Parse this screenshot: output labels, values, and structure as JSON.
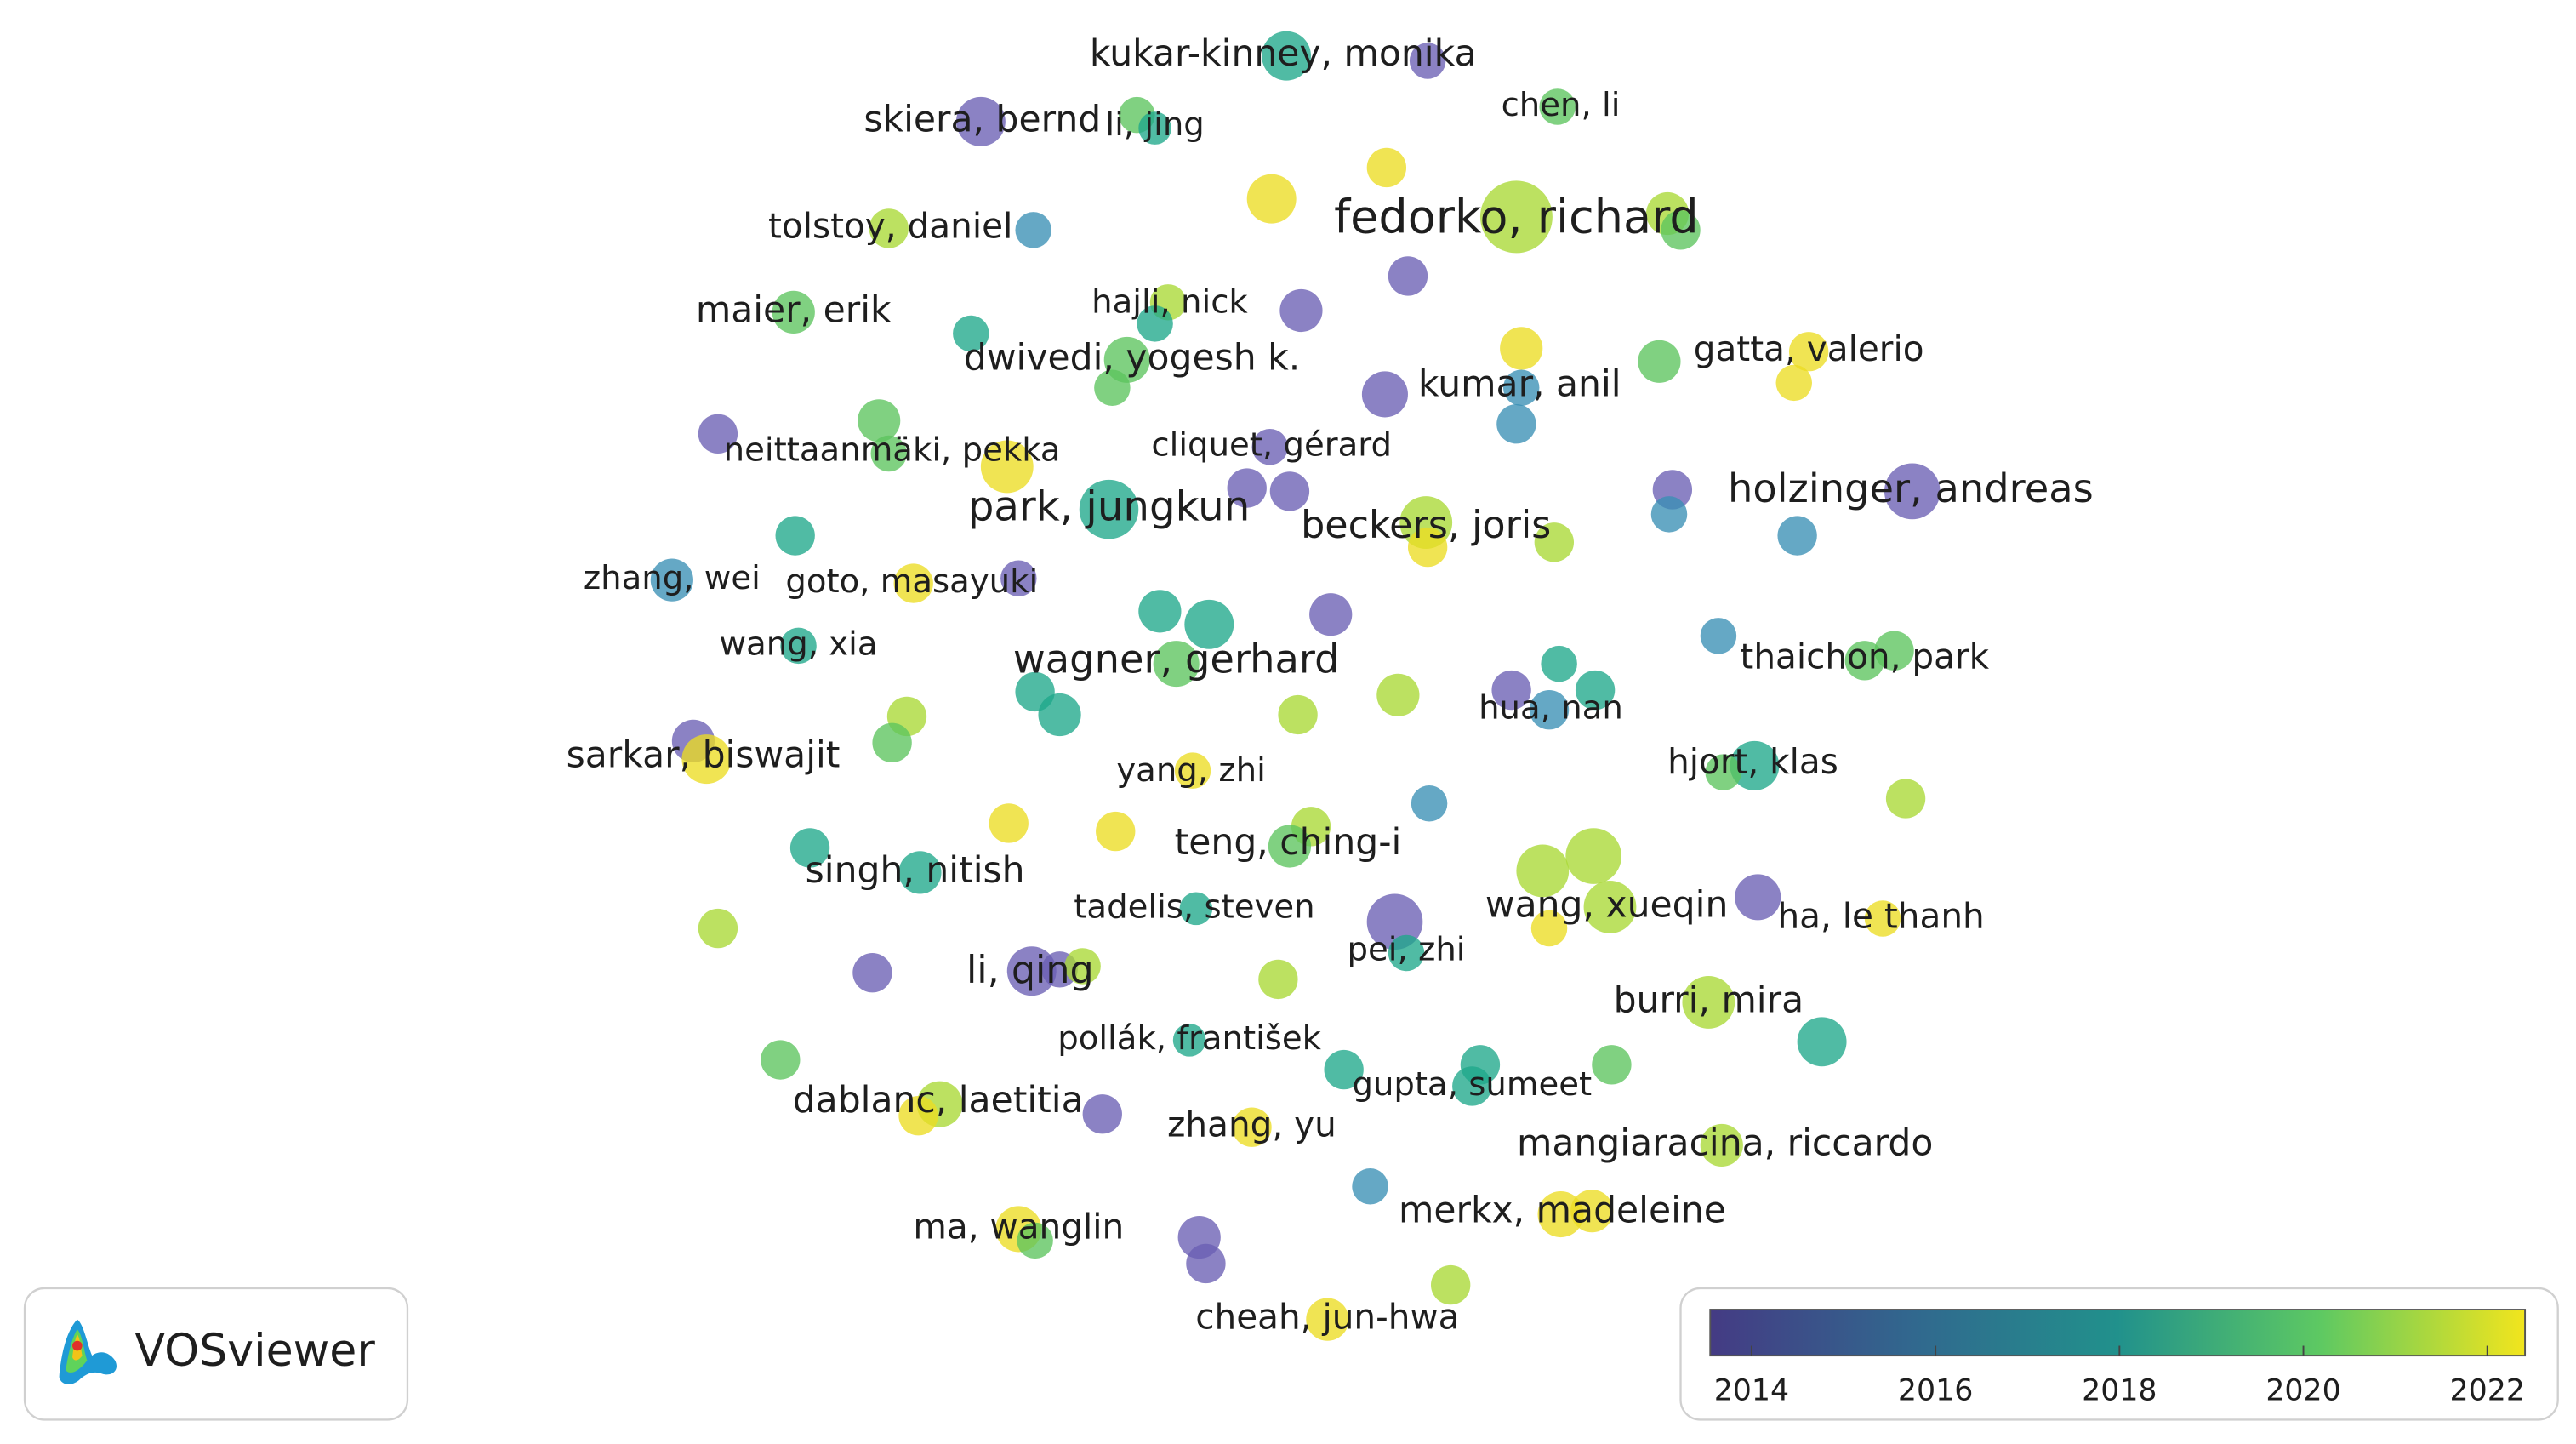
{
  "nodes": [
    {
      "label": "kukar-kinney, monika"
    },
    {
      "label": "chen, li"
    },
    {
      "label": "skiera, bernd"
    },
    {
      "label": "li, jing"
    },
    {
      "label": "fedorko, richard"
    },
    {
      "label": "tolstoy, daniel"
    },
    {
      "label": "maier, erik"
    },
    {
      "label": "hajli, nick"
    },
    {
      "label": "dwivedi, yogesh k."
    },
    {
      "label": "gatta, valerio"
    },
    {
      "label": "kumar, anil"
    },
    {
      "label": "neittaanmäki, pekka"
    },
    {
      "label": "cliquet, gérard"
    },
    {
      "label": "holzinger, andreas"
    },
    {
      "label": "park, jungkun"
    },
    {
      "label": "beckers, joris"
    },
    {
      "label": "zhang, wei"
    },
    {
      "label": "goto, masayuki"
    },
    {
      "label": "wang, xia"
    },
    {
      "label": "wagner, gerhard"
    },
    {
      "label": "thaichon, park"
    },
    {
      "label": "hua, nan"
    },
    {
      "label": "sarkar, biswajit"
    },
    {
      "label": "yang, zhi"
    },
    {
      "label": "hjort, klas"
    },
    {
      "label": "teng, ching-i"
    },
    {
      "label": "singh, nitish"
    },
    {
      "label": "tadelis, steven"
    },
    {
      "label": "wang, xueqin"
    },
    {
      "label": "ha, le thanh"
    },
    {
      "label": "pei, zhi"
    },
    {
      "label": "li, qing"
    },
    {
      "label": "burri, mira"
    },
    {
      "label": "pollák, františek"
    },
    {
      "label": "gupta, sumeet"
    },
    {
      "label": "dablanc, laetitia"
    },
    {
      "label": "zhang, yu"
    },
    {
      "label": "mangiaracina, riccardo"
    },
    {
      "label": "merkx, madeleine"
    },
    {
      "label": "ma, wanglin"
    },
    {
      "label": "cheah, jun-hwa"
    }
  ],
  "brand": "VOSviewer",
  "color_scale": {
    "range": [
      2013.55,
      2022.41
    ],
    "ticks": [
      2014,
      2016,
      2018,
      2020,
      2022
    ]
  }
}
